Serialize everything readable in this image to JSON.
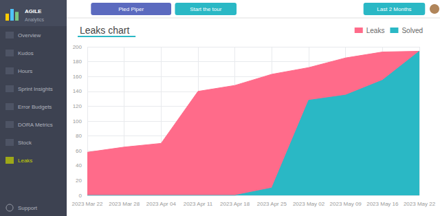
{
  "chart_data": {
    "type": "area",
    "title": "Leaks chart",
    "categories": [
      "2023 Mar 22",
      "2023 Mar 28",
      "2023 Apr 04",
      "2023 Apr 11",
      "2023 Apr 18",
      "2023 Apr 25",
      "2023 May 02",
      "2023 May 09",
      "2023 May 16",
      "2023 May 22"
    ],
    "series": [
      {
        "name": "Leaks",
        "color": "#ff6b8a",
        "values": [
          58,
          65,
          70,
          140,
          148,
          163,
          172,
          185,
          193,
          194
        ]
      },
      {
        "name": "Solved",
        "color": "#2ab8c5",
        "values": [
          0,
          0,
          0,
          0,
          0,
          10,
          128,
          135,
          155,
          194
        ]
      }
    ],
    "ylim": [
      0,
      200
    ],
    "yticks": [
      0,
      20,
      40,
      60,
      80,
      100,
      120,
      140,
      160,
      180,
      200
    ],
    "grid": true,
    "legend": "top",
    "annotations": [
      "AGILE",
      "Analytics",
      "Overview",
      "Kudos",
      "Hours",
      "Sprint Insights",
      "Error Budgets",
      "DORA Metrics",
      "Stock",
      "Leaks",
      "Support",
      "Pied Piper",
      "Start the tour",
      "Last 2 Months"
    ]
  }
}
